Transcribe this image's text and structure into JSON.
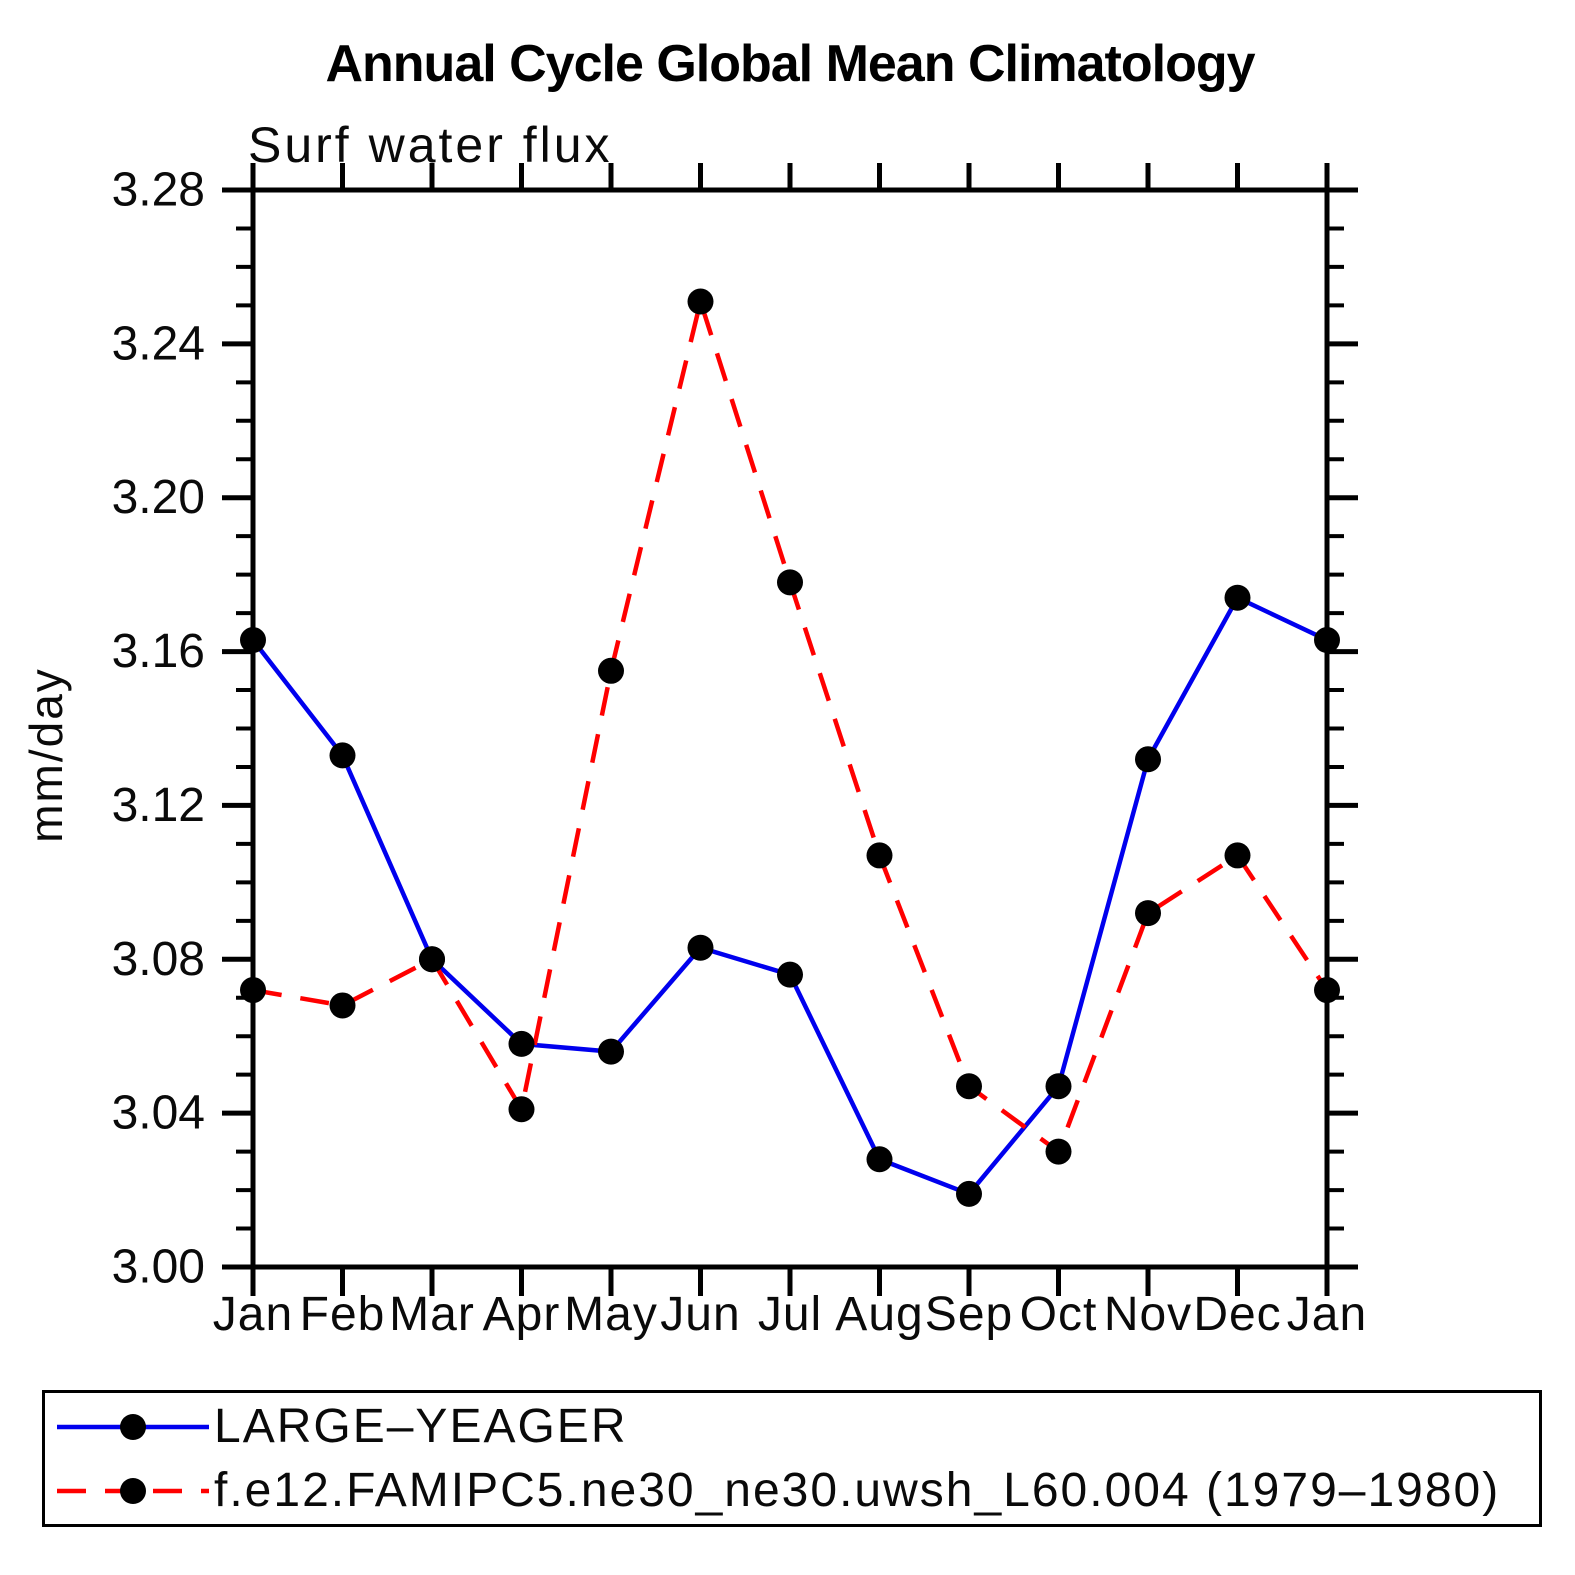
{
  "chart": {
    "title": "Annual Cycle Global Mean Climatology",
    "subtitle": "Surf water flux",
    "ylabel": "mm/day"
  },
  "chart_data": {
    "type": "line",
    "title": "Annual Cycle Global Mean Climatology",
    "subtitle": "Surf water flux",
    "ylabel": "mm/day",
    "xlabel": "",
    "categories": [
      "Jan",
      "Feb",
      "Mar",
      "Apr",
      "May",
      "Jun",
      "Jul",
      "Aug",
      "Sep",
      "Oct",
      "Nov",
      "Dec",
      "Jan"
    ],
    "series": [
      {
        "name": "LARGE–YEAGER",
        "color": "#0000ee",
        "line_style": "solid",
        "marker": "filled-circle",
        "marker_color": "#000000",
        "values": [
          3.163,
          3.133,
          3.08,
          3.058,
          3.056,
          3.083,
          3.076,
          3.028,
          3.019,
          3.047,
          3.132,
          3.174,
          3.163
        ]
      },
      {
        "name": "f.e12.FAMIPC5.ne30_ne30.uwsh_L60.004 (1979–1980)",
        "color": "#ff0000",
        "line_style": "dashed",
        "marker": "filled-circle",
        "marker_color": "#000000",
        "values": [
          3.072,
          3.068,
          3.08,
          3.041,
          3.155,
          3.251,
          3.178,
          3.107,
          3.047,
          3.03,
          3.092,
          3.107,
          3.072
        ]
      }
    ],
    "ylim": [
      3.0,
      3.28
    ],
    "y_major_step": 0.04,
    "y_minor_step": 0.01,
    "y_tick_labels": [
      "3.00",
      "3.04",
      "3.08",
      "3.12",
      "3.16",
      "3.20",
      "3.24",
      "3.28"
    ],
    "grid": false,
    "frame": true,
    "tick_direction": "out",
    "legend_position": "bottom"
  }
}
